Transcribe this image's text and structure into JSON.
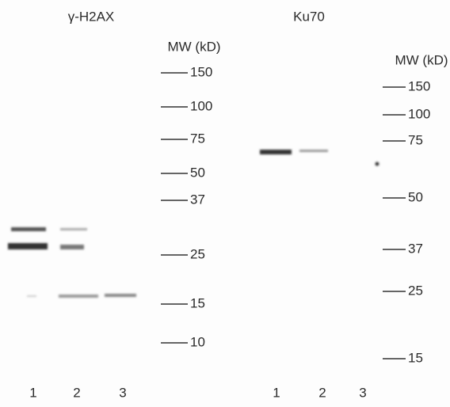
{
  "panels": [
    {
      "title": "γ-H2AX",
      "mw_label": "MW (kD)",
      "markers": [
        "150",
        "100",
        "75",
        "50",
        "37",
        "25",
        "15",
        "10"
      ],
      "lanes": [
        "1",
        "2",
        "3"
      ]
    },
    {
      "title": "Ku70",
      "mw_label": "MW (kD)",
      "markers": [
        "150",
        "100",
        "75",
        "50",
        "37",
        "25",
        "15"
      ],
      "lanes": [
        "1",
        "2",
        "3"
      ]
    }
  ]
}
